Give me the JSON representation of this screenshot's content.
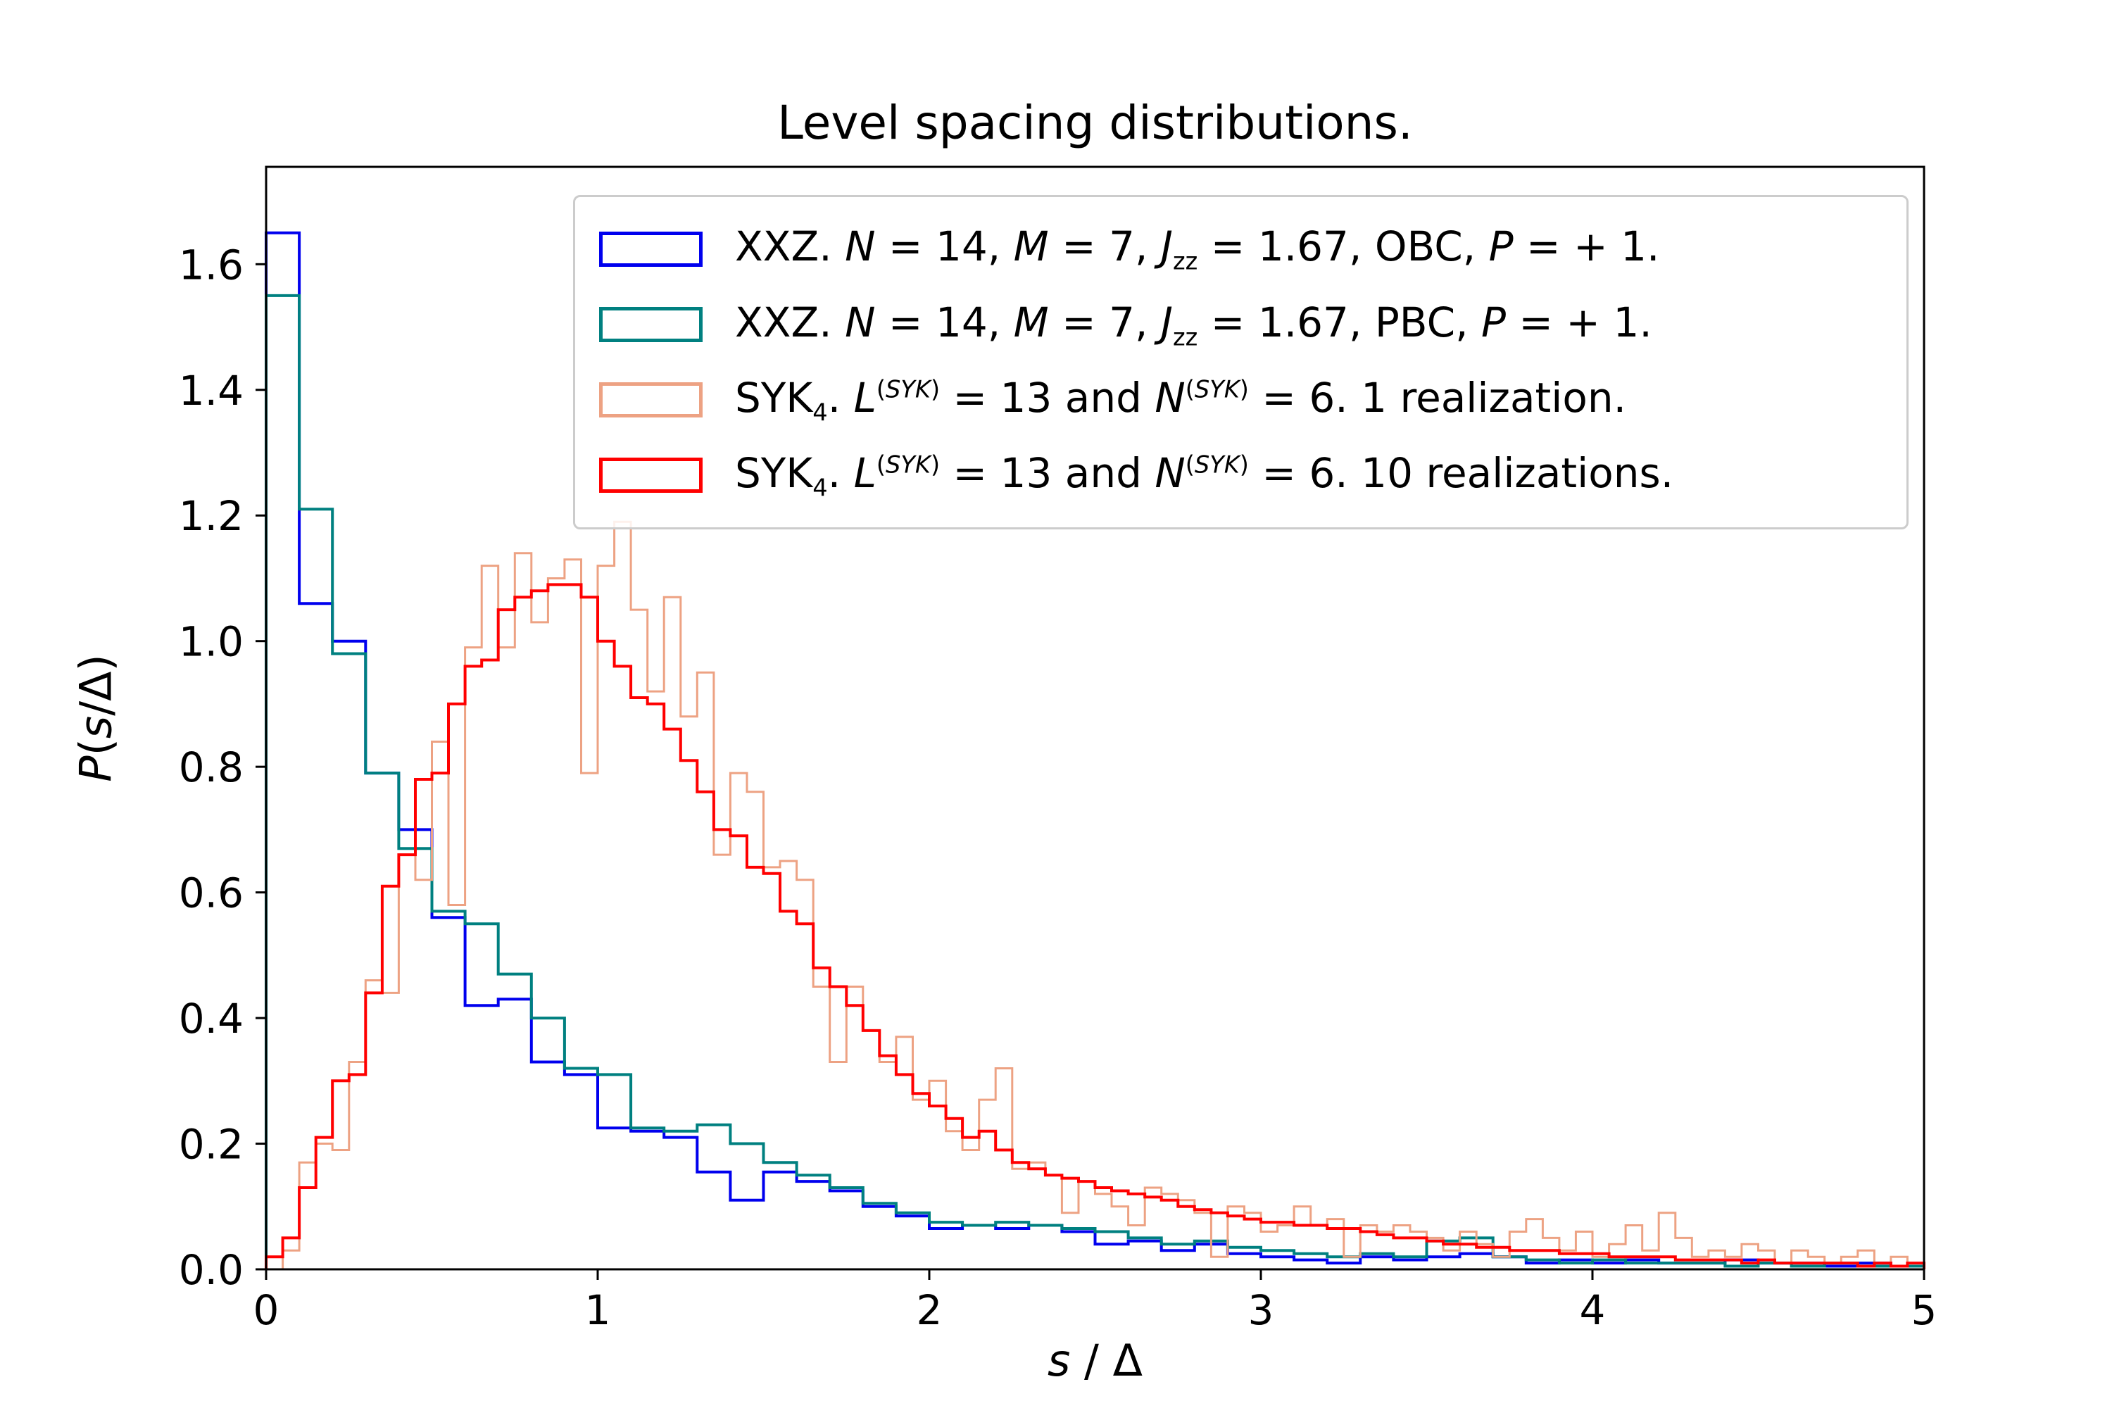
{
  "figure": {
    "background": "#ffffff",
    "axis_color": "#000000",
    "legend_border_color": "#cccccc"
  },
  "chart_data": {
    "type": "histogram-step",
    "title": "Level spacing distributions.",
    "xlabel": "*s* / Δ",
    "ylabel": "*P*(*s*/Δ)",
    "xlim": [
      0,
      5
    ],
    "ylim": [
      0,
      1.755
    ],
    "grid": false,
    "legend_location": "upper center",
    "xticks": [
      0,
      1,
      2,
      3,
      4,
      5
    ],
    "xtick_labels": [
      "0",
      "1",
      "2",
      "3",
      "4",
      "5"
    ],
    "yticks": [
      0,
      0.2,
      0.4,
      0.6,
      0.8,
      1.0,
      1.2,
      1.4,
      1.6
    ],
    "ytick_labels": [
      "0.0",
      "0.2",
      "0.4",
      "0.6",
      "0.8",
      "1.0",
      "1.2",
      "1.4",
      "1.6"
    ],
    "series": [
      {
        "id": "xxz-obc",
        "label": "XXZ. *N* = 14, *M* = 7, *J*_{zz} = 1.67, OBC, *P* = + 1.",
        "color": "#0000ee",
        "line_width": 4,
        "bin_width": 0.1,
        "values": [
          1.65,
          1.06,
          1.0,
          0.79,
          0.7,
          0.56,
          0.42,
          0.43,
          0.33,
          0.31,
          0.225,
          0.22,
          0.21,
          0.155,
          0.11,
          0.155,
          0.14,
          0.125,
          0.1,
          0.085,
          0.065,
          0.07,
          0.065,
          0.07,
          0.06,
          0.04,
          0.045,
          0.03,
          0.04,
          0.025,
          0.02,
          0.015,
          0.01,
          0.02,
          0.015,
          0.02,
          0.025,
          0.02,
          0.01,
          0.015,
          0.01,
          0.015,
          0.01,
          0.01,
          0.015,
          0.01,
          0.01,
          0.005,
          0.01,
          0.005
        ]
      },
      {
        "id": "xxz-pbc",
        "label": "XXZ. *N* = 14, *M* = 7, *J*_{zz} = 1.67, PBC, *P* = + 1.",
        "color": "#008080",
        "line_width": 4,
        "bin_width": 0.1,
        "values": [
          1.55,
          1.21,
          0.98,
          0.79,
          0.67,
          0.57,
          0.55,
          0.47,
          0.4,
          0.32,
          0.31,
          0.225,
          0.22,
          0.23,
          0.2,
          0.17,
          0.15,
          0.13,
          0.105,
          0.09,
          0.075,
          0.07,
          0.075,
          0.07,
          0.065,
          0.06,
          0.05,
          0.04,
          0.045,
          0.035,
          0.03,
          0.025,
          0.02,
          0.025,
          0.02,
          0.045,
          0.05,
          0.02,
          0.015,
          0.01,
          0.015,
          0.01,
          0.01,
          0.01,
          0.005,
          0.01,
          0.005,
          0.01,
          0.005,
          0.005
        ]
      },
      {
        "id": "syk-1-realization",
        "label": "SYK_{4}. *L*^{(*SYK*)} = 13 and *N*^{(*SYK*)} = 6. 1 realization.",
        "color": "#eda283",
        "line_width": 3,
        "bin_width": 0.05,
        "values": [
          0.0,
          0.03,
          0.17,
          0.2,
          0.19,
          0.33,
          0.46,
          0.44,
          0.66,
          0.62,
          0.84,
          0.58,
          0.99,
          1.12,
          0.99,
          1.14,
          1.03,
          1.1,
          1.13,
          0.79,
          1.12,
          1.19,
          1.05,
          0.92,
          1.07,
          0.88,
          0.95,
          0.66,
          0.79,
          0.76,
          0.64,
          0.65,
          0.62,
          0.45,
          0.33,
          0.45,
          0.38,
          0.33,
          0.37,
          0.27,
          0.3,
          0.22,
          0.19,
          0.27,
          0.32,
          0.16,
          0.17,
          0.15,
          0.09,
          0.14,
          0.12,
          0.1,
          0.07,
          0.13,
          0.12,
          0.11,
          0.09,
          0.02,
          0.1,
          0.09,
          0.06,
          0.07,
          0.1,
          0.07,
          0.08,
          0.02,
          0.07,
          0.06,
          0.07,
          0.06,
          0.05,
          0.03,
          0.06,
          0.04,
          0.02,
          0.06,
          0.08,
          0.05,
          0.03,
          0.06,
          0.02,
          0.04,
          0.07,
          0.03,
          0.09,
          0.05,
          0.02,
          0.03,
          0.02,
          0.04,
          0.03,
          0.01,
          0.03,
          0.02,
          0.01,
          0.02,
          0.03,
          0.01,
          0.02,
          0.01
        ]
      },
      {
        "id": "syk-10-realizations",
        "label": "SYK_{4}. *L*^{(*SYK*)} = 13 and *N*^{(*SYK*)} = 6. 10 realizations.",
        "color": "#ff0000",
        "line_width": 4,
        "bin_width": 0.05,
        "values": [
          0.02,
          0.05,
          0.13,
          0.21,
          0.3,
          0.31,
          0.44,
          0.61,
          0.66,
          0.78,
          0.79,
          0.9,
          0.96,
          0.97,
          1.05,
          1.07,
          1.08,
          1.09,
          1.09,
          1.07,
          1.0,
          0.96,
          0.91,
          0.9,
          0.86,
          0.81,
          0.76,
          0.7,
          0.69,
          0.64,
          0.63,
          0.57,
          0.55,
          0.48,
          0.45,
          0.42,
          0.38,
          0.34,
          0.31,
          0.28,
          0.26,
          0.24,
          0.21,
          0.22,
          0.19,
          0.17,
          0.16,
          0.15,
          0.145,
          0.14,
          0.13,
          0.125,
          0.12,
          0.115,
          0.11,
          0.1,
          0.095,
          0.09,
          0.085,
          0.08,
          0.075,
          0.075,
          0.07,
          0.07,
          0.065,
          0.065,
          0.06,
          0.055,
          0.05,
          0.05,
          0.045,
          0.04,
          0.04,
          0.035,
          0.035,
          0.03,
          0.03,
          0.03,
          0.025,
          0.025,
          0.025,
          0.02,
          0.02,
          0.02,
          0.02,
          0.015,
          0.015,
          0.015,
          0.015,
          0.01,
          0.015,
          0.01,
          0.01,
          0.01,
          0.01,
          0.01,
          0.005,
          0.01,
          0.005,
          0.01
        ]
      }
    ]
  }
}
